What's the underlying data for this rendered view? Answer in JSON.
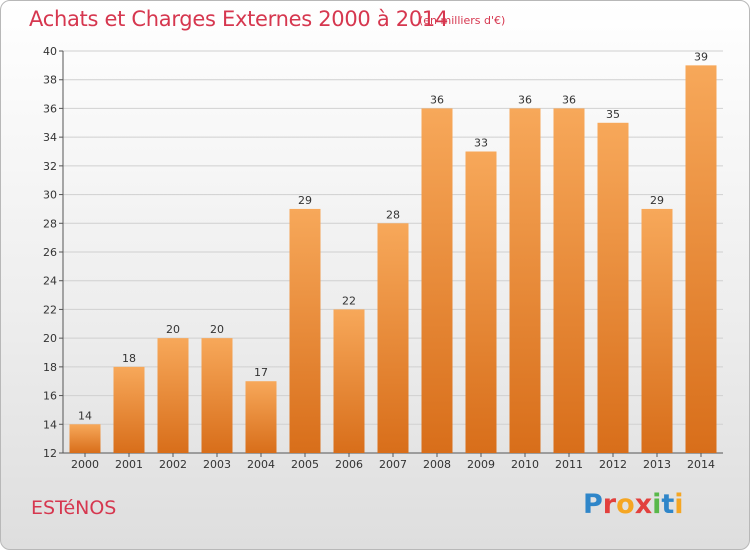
{
  "header": {
    "title": "Achats et Charges Externes 2000 à 2014",
    "subtitle": "(en milliers d'€)"
  },
  "footer": {
    "town": "ESTéNOS",
    "logo": [
      "P",
      "r",
      "o",
      "x",
      "i",
      "t",
      "i"
    ]
  },
  "colors": {
    "title": "#d6374f",
    "bar_top": "#f7a85a",
    "bar_bottom": "#d86e1a"
  },
  "chart_data": {
    "type": "bar",
    "title": "Achats et Charges Externes 2000 à 2014",
    "subtitle": "(en milliers d'€)",
    "xlabel": "",
    "ylabel": "",
    "categories": [
      "2000",
      "2001",
      "2002",
      "2003",
      "2004",
      "2005",
      "2006",
      "2007",
      "2008",
      "2009",
      "2010",
      "2011",
      "2012",
      "2013",
      "2014"
    ],
    "values": [
      14,
      18,
      20,
      20,
      17,
      29,
      22,
      28,
      36,
      33,
      36,
      36,
      35,
      29,
      39
    ],
    "ylim": [
      12,
      40
    ],
    "yticks": [
      12,
      14,
      16,
      18,
      20,
      22,
      24,
      26,
      28,
      30,
      32,
      34,
      36,
      38,
      40
    ],
    "grid": true,
    "legend": "none"
  }
}
